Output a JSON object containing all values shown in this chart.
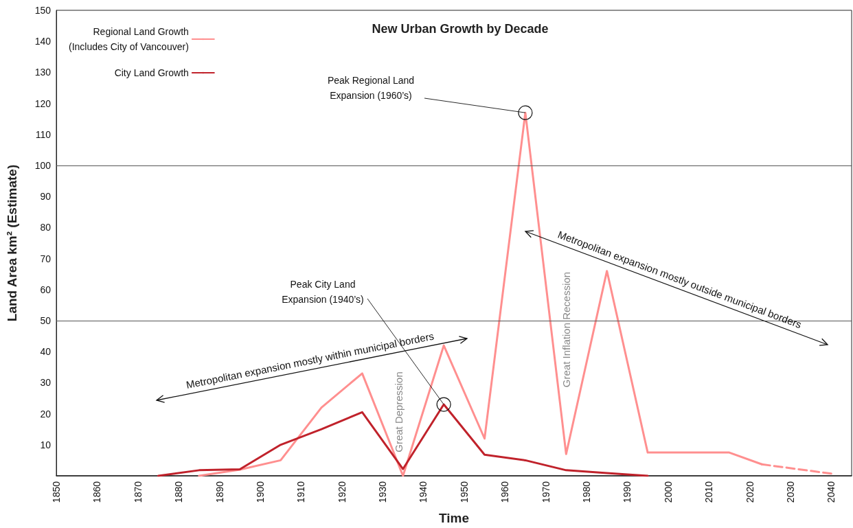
{
  "chart_data": {
    "type": "line",
    "title": "New Urban Growth by Decade",
    "xlabel": "Time",
    "ylabel": "Land Area km² (Estimate)",
    "xlim": [
      1850,
      2045
    ],
    "xticks": [
      1850,
      1860,
      1870,
      1880,
      1890,
      1900,
      1910,
      1920,
      1930,
      1940,
      1950,
      1960,
      1970,
      1980,
      1990,
      2000,
      2010,
      2020,
      2030,
      2040
    ],
    "ylim": [
      0,
      150
    ],
    "yticks": [
      10,
      20,
      30,
      40,
      50,
      60,
      70,
      80,
      90,
      100,
      110,
      120,
      130,
      140,
      150
    ],
    "series": [
      {
        "name": "Regional Land Growth\n(Includes City of Vancouver)",
        "color": "#ff8f8f",
        "x": [
          1885,
          1895,
          1905,
          1915,
          1925,
          1935,
          1945,
          1955,
          1965,
          1975,
          1985,
          1995,
          2005,
          2015,
          2023
        ],
        "values": [
          0,
          2,
          5,
          22,
          33,
          0,
          42,
          12,
          117,
          7,
          66,
          7.5,
          7.5,
          7.5,
          3.7
        ]
      },
      {
        "color": "#ff8f8f",
        "line_style": "dashed",
        "x": [
          2023,
          2040
        ],
        "values": [
          3.7,
          0.7
        ]
      },
      {
        "name": "City Land Growth",
        "color": "#c0222b",
        "x": [
          1875,
          1885,
          1895,
          1905,
          1915,
          1925,
          1935,
          1945,
          1955,
          1965,
          1975,
          1985,
          1995
        ],
        "values": [
          0,
          1.8,
          2.1,
          10,
          15,
          20.5,
          2.2,
          23,
          6.8,
          5,
          1.8,
          0.9,
          0
        ]
      }
    ],
    "ref_lines": [
      {
        "axis": "y",
        "value": 50,
        "color": "#555555"
      },
      {
        "axis": "y",
        "value": 100,
        "color": "#555555"
      }
    ],
    "annotations": [
      {
        "text": "Peak Regional Land Expansion (1960’s)",
        "x": 1965,
        "y": 117
      },
      {
        "text": "Peak City Land Expansion (1940’s)",
        "x": 1945,
        "y": 23
      },
      "Great Depression",
      "Great Inflation Recession",
      "Metropolitan expansion mostly within municipal borders",
      "Metropolitan expansion mostly outside municipal borders"
    ],
    "legend": "top left",
    "grid": false,
    "marker": "none",
    "line_style": "solid"
  }
}
